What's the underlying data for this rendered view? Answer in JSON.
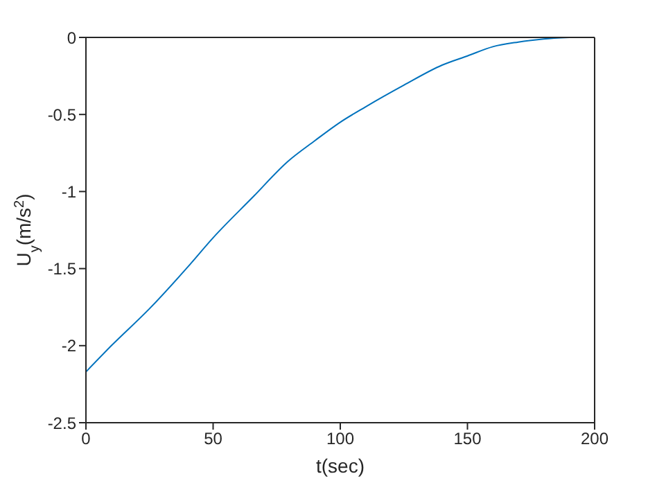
{
  "chart_data": {
    "type": "line",
    "xlabel": "t(sec)",
    "ylabel": "U$_{y}$(m/s$^{2}$)",
    "x": [
      0,
      10,
      25,
      40,
      50,
      66,
      79,
      90,
      100,
      110,
      125,
      140,
      150,
      160,
      170,
      180,
      190
    ],
    "series": [
      {
        "color": "#0072bd",
        "values": [
          -2.17,
          -2.0,
          -1.76,
          -1.49,
          -1.3,
          -1.03,
          -0.81,
          -0.67,
          -0.55,
          -0.45,
          -0.31,
          -0.18,
          -0.12,
          -0.06,
          -0.03,
          -0.01,
          0
        ]
      }
    ],
    "xlim": [
      0,
      200
    ],
    "xticks": [
      0,
      50,
      100,
      150,
      200
    ],
    "ylim": [
      -2.5,
      0
    ],
    "yticks": [
      -2.5,
      -2,
      -1.5,
      -1,
      -0.5,
      0
    ],
    "grid": false,
    "legend": false,
    "marker": "none",
    "line_style": "solid"
  }
}
